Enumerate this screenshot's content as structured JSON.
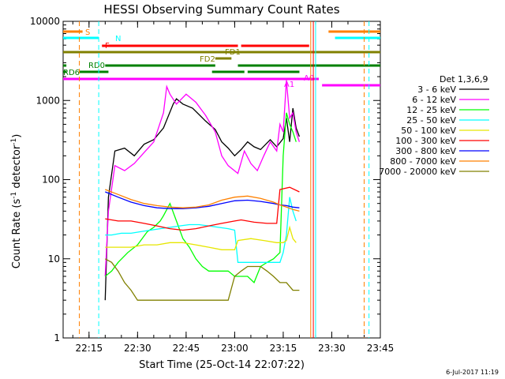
{
  "chart_data": {
    "type": "line",
    "title": "HESSI Observing Summary Count Rates",
    "xlabel": "Start Time (25-Oct-14 22:07:22)",
    "ylabel_main": "Count Rate (s",
    "ylabel_sup1": "-1",
    "ylabel_mid": " detector",
    "ylabel_sup2": "-1",
    "ylabel_end": ")",
    "yscale": "log",
    "ylim": [
      1,
      10000
    ],
    "xlim_minutes": [
      0,
      98
    ],
    "x_ticks": [
      {
        "t": 8,
        "label": "22:15"
      },
      {
        "t": 23,
        "label": "22:30"
      },
      {
        "t": 38,
        "label": "22:45"
      },
      {
        "t": 53,
        "label": "23:00"
      },
      {
        "t": 68,
        "label": "23:15"
      },
      {
        "t": 83,
        "label": "23:30"
      },
      {
        "t": 98,
        "label": "23:45"
      }
    ],
    "y_ticks": [
      {
        "v": 1,
        "label": "1"
      },
      {
        "v": 10,
        "label": "10"
      },
      {
        "v": 100,
        "label": "100"
      },
      {
        "v": 1000,
        "label": "1000"
      },
      {
        "v": 10000,
        "label": "10000"
      }
    ],
    "legend_title": "Det 1,3,6,9",
    "series": [
      {
        "name": "3 - 6 keV",
        "color": "#000000",
        "points": [
          [
            13,
            3
          ],
          [
            14,
            60
          ],
          [
            16,
            230
          ],
          [
            19,
            250
          ],
          [
            22,
            200
          ],
          [
            25,
            280
          ],
          [
            28,
            320
          ],
          [
            31,
            450
          ],
          [
            34,
            900
          ],
          [
            35,
            1050
          ],
          [
            37,
            900
          ],
          [
            40,
            800
          ],
          [
            44,
            550
          ],
          [
            47,
            430
          ],
          [
            49,
            300
          ],
          [
            51,
            250
          ],
          [
            53,
            200
          ],
          [
            55,
            240
          ],
          [
            57,
            300
          ],
          [
            59,
            260
          ],
          [
            61,
            240
          ],
          [
            64,
            320
          ],
          [
            66,
            260
          ],
          [
            68,
            330
          ],
          [
            69,
            600
          ],
          [
            70,
            300
          ],
          [
            71,
            800
          ],
          [
            72,
            450
          ],
          [
            73,
            350
          ]
        ]
      },
      {
        "name": "6 - 12 keV",
        "color": "#ff00ff",
        "points": [
          [
            13,
            6
          ],
          [
            14,
            40
          ],
          [
            16,
            150
          ],
          [
            19,
            130
          ],
          [
            22,
            160
          ],
          [
            25,
            220
          ],
          [
            28,
            300
          ],
          [
            31,
            700
          ],
          [
            32,
            1500
          ],
          [
            33,
            1200
          ],
          [
            35,
            900
          ],
          [
            38,
            1200
          ],
          [
            41,
            950
          ],
          [
            44,
            650
          ],
          [
            47,
            400
          ],
          [
            49,
            200
          ],
          [
            51,
            150
          ],
          [
            54,
            120
          ],
          [
            56,
            230
          ],
          [
            58,
            160
          ],
          [
            60,
            130
          ],
          [
            62,
            200
          ],
          [
            64,
            300
          ],
          [
            66,
            230
          ],
          [
            67,
            500
          ],
          [
            68,
            400
          ],
          [
            69,
            1800
          ],
          [
            70,
            600
          ],
          [
            71,
            700
          ],
          [
            72,
            400
          ],
          [
            73,
            300
          ]
        ]
      },
      {
        "name": "12 - 25 keV",
        "color": "#00ff00",
        "points": [
          [
            13,
            6
          ],
          [
            15,
            7
          ],
          [
            17,
            9
          ],
          [
            20,
            12
          ],
          [
            23,
            15
          ],
          [
            26,
            22
          ],
          [
            28,
            25
          ],
          [
            30,
            30
          ],
          [
            31,
            35
          ],
          [
            33,
            50
          ],
          [
            35,
            30
          ],
          [
            37,
            18
          ],
          [
            39,
            14
          ],
          [
            41,
            10
          ],
          [
            43,
            8
          ],
          [
            45,
            7
          ],
          [
            47,
            7
          ],
          [
            49,
            7
          ],
          [
            51,
            7
          ],
          [
            53,
            6
          ],
          [
            55,
            6
          ],
          [
            57,
            6
          ],
          [
            59,
            5
          ],
          [
            61,
            8
          ],
          [
            63,
            9
          ],
          [
            65,
            10
          ],
          [
            67,
            12
          ],
          [
            68,
            200
          ],
          [
            69,
            700
          ],
          [
            70,
            500
          ],
          [
            71,
            400
          ],
          [
            72,
            300
          ]
        ]
      },
      {
        "name": "25 - 50 keV",
        "color": "#00ffff",
        "points": [
          [
            13,
            20
          ],
          [
            15,
            20
          ],
          [
            18,
            21
          ],
          [
            21,
            21
          ],
          [
            24,
            22
          ],
          [
            27,
            23
          ],
          [
            30,
            24
          ],
          [
            33,
            25
          ],
          [
            36,
            26
          ],
          [
            39,
            27
          ],
          [
            42,
            27
          ],
          [
            45,
            26
          ],
          [
            48,
            25
          ],
          [
            51,
            24
          ],
          [
            53,
            23
          ],
          [
            54,
            9
          ],
          [
            57,
            9
          ],
          [
            60,
            9
          ],
          [
            63,
            9
          ],
          [
            65,
            9
          ],
          [
            67,
            9
          ],
          [
            68,
            12
          ],
          [
            69,
            20
          ],
          [
            70,
            60
          ],
          [
            71,
            40
          ],
          [
            72,
            30
          ]
        ]
      },
      {
        "name": "50 - 100 keV",
        "color": "#e6e600",
        "points": [
          [
            13,
            14
          ],
          [
            17,
            14
          ],
          [
            21,
            14
          ],
          [
            25,
            15
          ],
          [
            29,
            15
          ],
          [
            33,
            16
          ],
          [
            37,
            16
          ],
          [
            41,
            15
          ],
          [
            45,
            14
          ],
          [
            49,
            13
          ],
          [
            53,
            13
          ],
          [
            54,
            17
          ],
          [
            58,
            18
          ],
          [
            62,
            17
          ],
          [
            66,
            16
          ],
          [
            68,
            16
          ],
          [
            69,
            17
          ],
          [
            70,
            25
          ],
          [
            71,
            18
          ],
          [
            72,
            16
          ]
        ]
      },
      {
        "name": "100 - 300 keV",
        "color": "#ff0000",
        "points": [
          [
            13,
            32
          ],
          [
            17,
            30
          ],
          [
            21,
            30
          ],
          [
            25,
            28
          ],
          [
            29,
            26
          ],
          [
            33,
            24
          ],
          [
            37,
            23
          ],
          [
            41,
            24
          ],
          [
            45,
            26
          ],
          [
            49,
            28
          ],
          [
            53,
            30
          ],
          [
            55,
            31
          ],
          [
            59,
            29
          ],
          [
            63,
            28
          ],
          [
            66,
            28
          ],
          [
            67,
            75
          ],
          [
            70,
            80
          ],
          [
            73,
            70
          ]
        ]
      },
      {
        "name": "300 - 800 keV",
        "color": "#0000ff",
        "points": [
          [
            13,
            70
          ],
          [
            17,
            60
          ],
          [
            21,
            52
          ],
          [
            25,
            47
          ],
          [
            29,
            44
          ],
          [
            33,
            43
          ],
          [
            37,
            43
          ],
          [
            41,
            44
          ],
          [
            45,
            46
          ],
          [
            49,
            50
          ],
          [
            53,
            54
          ],
          [
            57,
            55
          ],
          [
            61,
            53
          ],
          [
            65,
            50
          ],
          [
            67,
            48
          ],
          [
            69,
            47
          ],
          [
            71,
            45
          ],
          [
            73,
            44
          ]
        ]
      },
      {
        "name": "800 - 7000 keV",
        "color": "#ff8000",
        "points": [
          [
            13,
            75
          ],
          [
            17,
            65
          ],
          [
            21,
            56
          ],
          [
            25,
            50
          ],
          [
            29,
            47
          ],
          [
            33,
            45
          ],
          [
            37,
            44
          ],
          [
            41,
            45
          ],
          [
            45,
            48
          ],
          [
            49,
            55
          ],
          [
            53,
            60
          ],
          [
            57,
            62
          ],
          [
            61,
            58
          ],
          [
            65,
            52
          ],
          [
            67,
            48
          ],
          [
            69,
            45
          ],
          [
            71,
            42
          ],
          [
            73,
            40
          ]
        ]
      },
      {
        "name": "7000 - 20000 keV",
        "color": "#808000",
        "points": [
          [
            13,
            10
          ],
          [
            15,
            9
          ],
          [
            17,
            7
          ],
          [
            19,
            5
          ],
          [
            21,
            4
          ],
          [
            23,
            3
          ],
          [
            25,
            3
          ],
          [
            27,
            3
          ],
          [
            29,
            3
          ],
          [
            31,
            3
          ],
          [
            33,
            3
          ],
          [
            35,
            3
          ],
          [
            37,
            3
          ],
          [
            39,
            3
          ],
          [
            41,
            3
          ],
          [
            43,
            3
          ],
          [
            45,
            3
          ],
          [
            47,
            3
          ],
          [
            49,
            3
          ],
          [
            51,
            3
          ],
          [
            53,
            6
          ],
          [
            55,
            7
          ],
          [
            57,
            8
          ],
          [
            59,
            8
          ],
          [
            61,
            8
          ],
          [
            63,
            7
          ],
          [
            65,
            6
          ],
          [
            67,
            5
          ],
          [
            69,
            5
          ],
          [
            71,
            4
          ],
          [
            73,
            4
          ]
        ]
      }
    ],
    "flag_bars": [
      {
        "label": "S",
        "color": "#ff8000",
        "segments": [
          [
            0,
            6
          ],
          [
            82,
            98
          ]
        ]
      },
      {
        "label": "N",
        "color": "#00ffff",
        "segments": [
          [
            0,
            11
          ],
          [
            84,
            98
          ]
        ]
      },
      {
        "label": "F",
        "color": "#ff0000",
        "segments": [
          [
            12,
            54
          ],
          [
            55,
            76
          ]
        ]
      },
      {
        "label": "FD1",
        "color": "#808000",
        "segments": [
          [
            0,
            98
          ]
        ]
      },
      {
        "label": "FD2",
        "color": "#808000",
        "segments": [
          [
            47,
            52
          ]
        ]
      },
      {
        "label": "RD0",
        "color": "#008000",
        "segments": [
          [
            0,
            1
          ],
          [
            13,
            47
          ],
          [
            54,
            98
          ]
        ]
      },
      {
        "label": "RD6",
        "color": "#008000",
        "segments": [
          [
            0,
            1
          ],
          [
            5,
            14
          ],
          [
            46,
            56
          ],
          [
            57,
            73
          ]
        ]
      },
      {
        "label": "A1",
        "color": "#ff00ff",
        "segments": [
          [
            0,
            79
          ]
        ]
      },
      {
        "label": "A0",
        "color": "#ff00ff",
        "segments": [
          [
            80,
            98
          ]
        ]
      }
    ],
    "vertical_lines": [
      {
        "t": 5,
        "color": "#ff8000",
        "dash": true
      },
      {
        "t": 11,
        "color": "#00ffff",
        "dash": true
      },
      {
        "t": 76.5,
        "color": "#ff8000",
        "dash": false
      },
      {
        "t": 77.3,
        "color": "#ff0000",
        "dash": false
      },
      {
        "t": 78,
        "color": "#00ffff",
        "dash": false
      },
      {
        "t": 93,
        "color": "#ff8000",
        "dash": true
      },
      {
        "t": 94.5,
        "color": "#00ffff",
        "dash": true
      }
    ]
  },
  "footer": {
    "timestamp": "6-Jul-2017 11:19"
  }
}
